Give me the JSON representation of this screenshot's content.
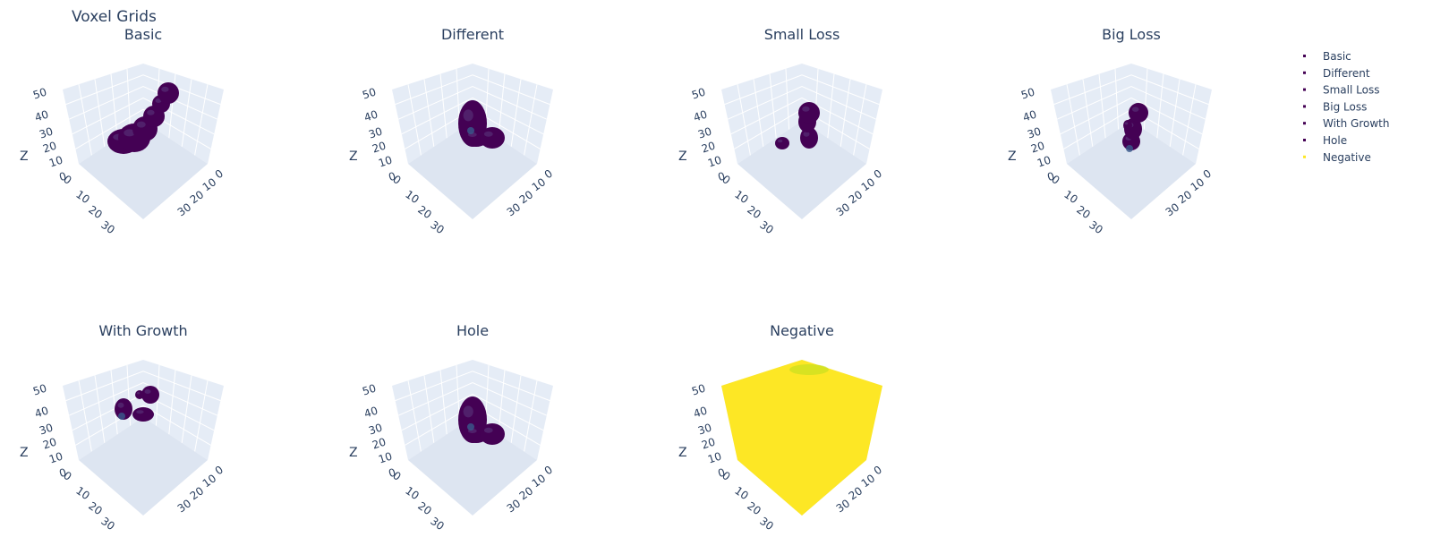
{
  "chart_data": {
    "type": "3d-voxel",
    "title": "Voxel Grids",
    "zaxis": {
      "title": "Z",
      "ticks": [
        "0",
        "10",
        "20",
        "30",
        "40",
        "50"
      ]
    },
    "xaxis": {
      "ticks": [
        "0",
        "10",
        "20",
        "30"
      ]
    },
    "yaxis": {
      "ticks": [
        "0",
        "10",
        "20",
        "30"
      ]
    },
    "colors": {
      "voxel": "#440154",
      "voxel_hi": "#3a5a8c",
      "negative": "#fde725",
      "negative_spot": "#c8e020",
      "scene_bg": "#e5ecf6"
    },
    "subplots": [
      {
        "title": "Basic",
        "shape": "basic"
      },
      {
        "title": "Different",
        "shape": "different"
      },
      {
        "title": "Small Loss",
        "shape": "small-loss"
      },
      {
        "title": "Big Loss",
        "shape": "big-loss"
      },
      {
        "title": "With Growth",
        "shape": "with-growth"
      },
      {
        "title": "Hole",
        "shape": "hole"
      },
      {
        "title": "Negative",
        "shape": "negative"
      }
    ],
    "legend": [
      {
        "name": "Basic",
        "color": "#440154"
      },
      {
        "name": "Different",
        "color": "#440154"
      },
      {
        "name": "Small Loss",
        "color": "#440154"
      },
      {
        "name": "Big Loss",
        "color": "#440154"
      },
      {
        "name": "With Growth",
        "color": "#440154"
      },
      {
        "name": "Hole",
        "color": "#440154"
      },
      {
        "name": "Negative",
        "color": "#fde725"
      }
    ]
  }
}
